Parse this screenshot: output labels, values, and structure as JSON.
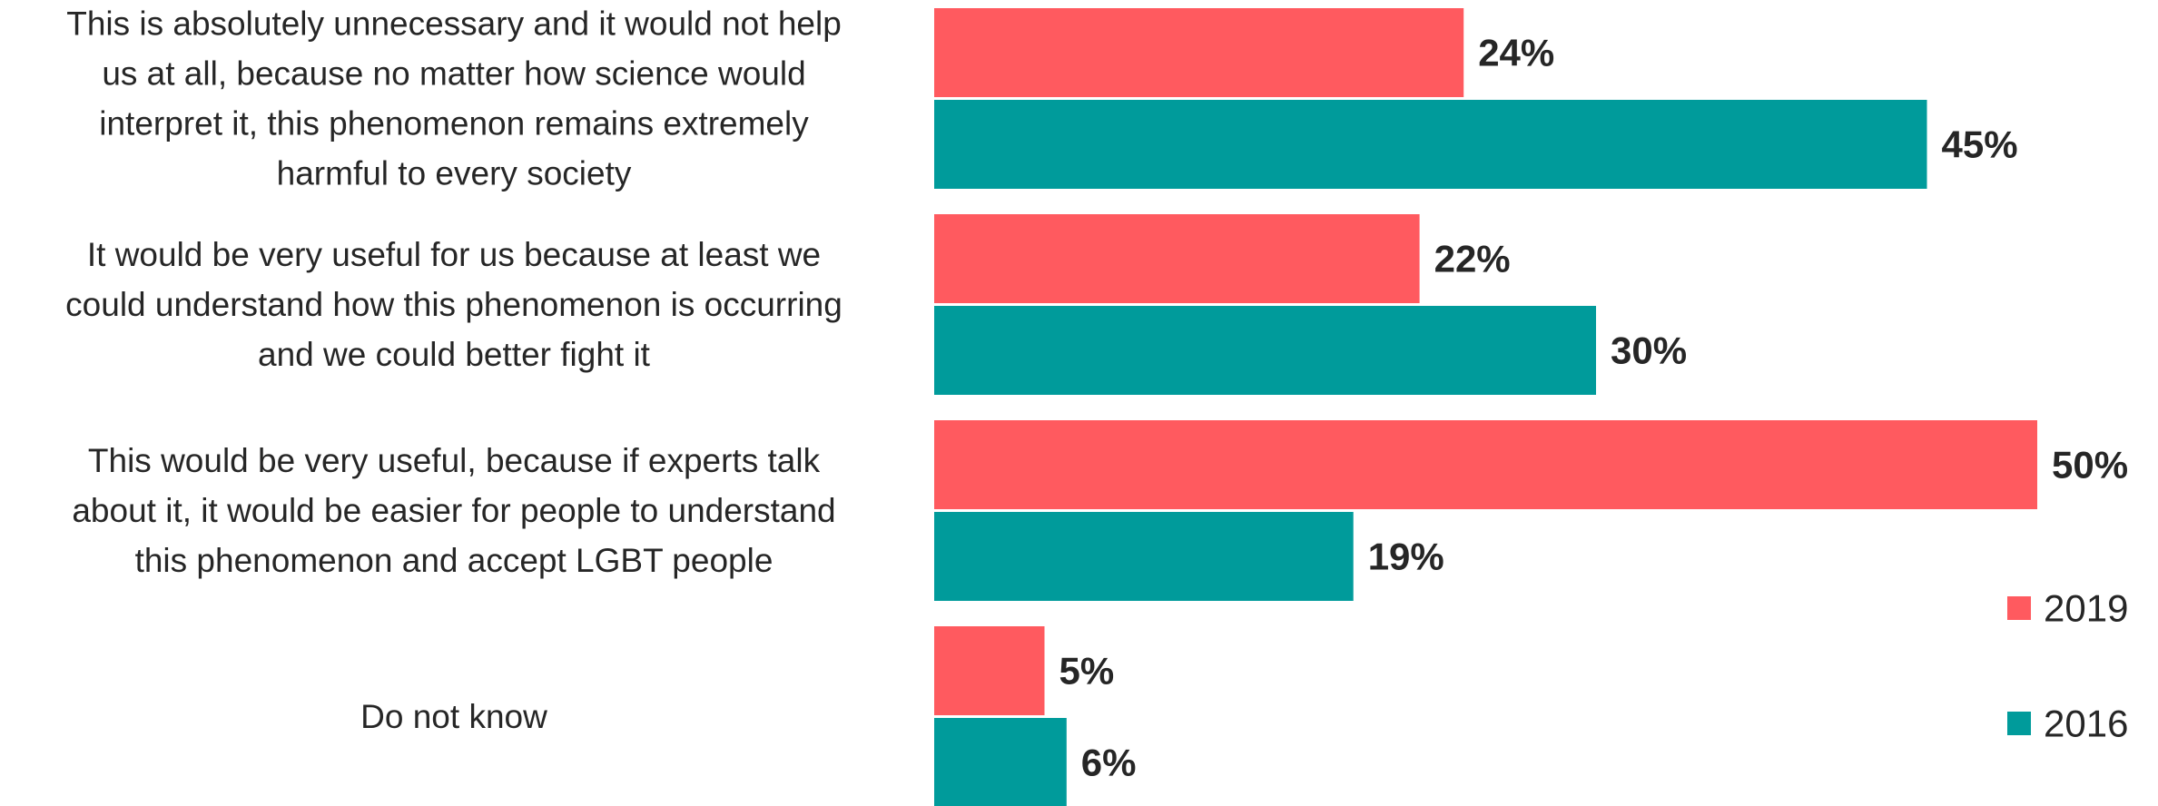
{
  "chart_data": {
    "type": "bar",
    "orientation": "horizontal",
    "categories": [
      "This is absolutely unnecessary and it would not help us at all, because no matter how science would interpret it, this phenomenon remains extremely harmful to every society",
      "It would be very useful for us because at least we could understand how this phenomenon is occurring and we could better fight it",
      "This would be very useful, because if experts talk about it, it would be easier for people to understand this phenomenon and accept LGBT people",
      "Do not know"
    ],
    "category_lines": [
      [
        "This is absolutely unnecessary and it would not help",
        "us at all, because no matter how science would",
        "interpret it, this phenomenon remains extremely",
        "harmful to every society"
      ],
      [
        "It would be very useful for us because at least we",
        "could understand how this phenomenon is occurring",
        "and we could better fight it"
      ],
      [
        "This would be very useful, because if experts talk",
        "about it, it would be easier for people to understand",
        "this phenomenon and accept LGBT people"
      ],
      [
        "Do not know"
      ]
    ],
    "series": [
      {
        "name": "2019",
        "color": "#ff5a5f",
        "values": [
          24,
          22,
          50,
          5
        ],
        "labels": [
          "24%",
          "22%",
          "50%",
          "5%"
        ]
      },
      {
        "name": "2016",
        "color": "#009b9b",
        "values": [
          45,
          30,
          19,
          6
        ],
        "labels": [
          "45%",
          "30%",
          "19%",
          "6%"
        ]
      }
    ],
    "legend": {
      "position": "bottom-right",
      "order": [
        "2019",
        "2016"
      ]
    },
    "xlim": [
      0,
      50
    ],
    "grid": false,
    "axes_visible": false
  }
}
